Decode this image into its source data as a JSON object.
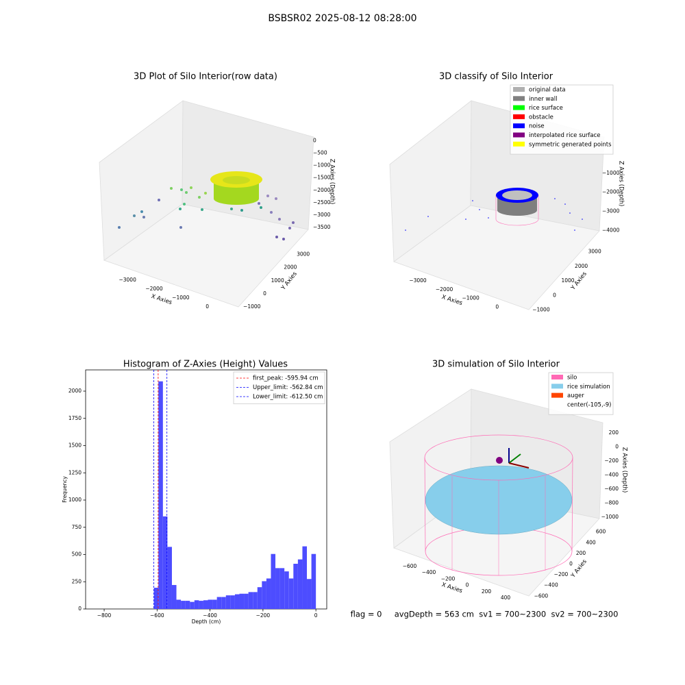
{
  "title": "BSBSR02 2025-08-12 08:28:00",
  "footer": "flag = 0     avgDepth = 563 cm  sv1 = 700~2300  sv2 = 700~2300",
  "chart_data": [
    {
      "type": "scatter3d",
      "title": "3D Plot of Silo Interior(row data)",
      "xlabel": "X Axies",
      "ylabel": "Y Axies",
      "zlabel": "Z Axies (Depth)",
      "xlim": [
        -3700,
        600
      ],
      "xticks": [
        {
          "value": -3000,
          "label": "−3000"
        },
        {
          "value": -2000,
          "label": "−2000"
        },
        {
          "value": -1000,
          "label": "−1000"
        },
        0
      ],
      "ylim": [
        -1200,
        3500
      ],
      "yticks": [
        {
          "value": -1000,
          "label": "−1000"
        },
        0,
        1000,
        2000,
        3000
      ],
      "zlim": [
        -3800,
        200
      ],
      "zticks": [
        0,
        {
          "value": -500,
          "label": "−500"
        },
        {
          "value": -1000,
          "label": "−1000"
        },
        {
          "value": -1500,
          "label": "−1500"
        },
        {
          "value": -2000,
          "label": "−2000"
        },
        {
          "value": -2500,
          "label": "−2500"
        },
        {
          "value": -3000,
          "label": "−3000"
        },
        {
          "value": -3500,
          "label": "−3500"
        }
      ]
    },
    {
      "type": "scatter3d",
      "title": "3D classify of Silo Interior",
      "xlabel": "X Axies",
      "ylabel": "Y Axies",
      "zlabel": "Z Axies (Depth)",
      "xlim": [
        -3700,
        500
      ],
      "xticks": [
        {
          "value": -3000,
          "label": "−3000"
        },
        {
          "value": -2000,
          "label": "−2000"
        },
        {
          "value": -1000,
          "label": "−1000"
        },
        0
      ],
      "ylim": [
        -1200,
        3400
      ],
      "yticks": [
        {
          "value": -1000,
          "label": "−1000"
        },
        0,
        1000,
        2000,
        3000
      ],
      "zlim": [
        -4200,
        0
      ],
      "zticks": [
        {
          "value": -1000,
          "label": "−1000"
        },
        {
          "value": -2000,
          "label": "−2000"
        },
        {
          "value": -3000,
          "label": "−3000"
        },
        {
          "value": -4000,
          "label": "−4000"
        }
      ],
      "legend": [
        {
          "label": "original data",
          "color": "#b0b0b0"
        },
        {
          "label": "inner wall",
          "color": "#808080"
        },
        {
          "label": "rice surface",
          "color": "#00ff00"
        },
        {
          "label": "obstacle",
          "color": "#ff0000"
        },
        {
          "label": "noise",
          "color": "#0000ff"
        },
        {
          "label": "interpolated rice surface",
          "color": "#800080"
        },
        {
          "label": "symmetric generated points",
          "color": "#ffff00"
        }
      ]
    },
    {
      "type": "histogram",
      "title": "Histogram of Z-Axies (Height) Values",
      "xlabel": "Depth (cm)",
      "ylabel": "Frequency",
      "color": "#4d4dff",
      "bins": [
        -612,
        -595,
        -578,
        -561,
        -544,
        -527,
        -510,
        -493,
        -476,
        -459,
        -442,
        -425,
        -408,
        -391,
        -374,
        -357,
        -340,
        -323,
        -306,
        -289,
        -272,
        -255,
        -238,
        -221,
        -204,
        -187,
        -170,
        -153,
        -136,
        -119,
        -102,
        -85,
        -68,
        -51,
        -34,
        -17,
        0
      ],
      "counts": [
        195,
        2090,
        850,
        570,
        220,
        85,
        75,
        75,
        65,
        80,
        75,
        80,
        85,
        85,
        110,
        110,
        125,
        125,
        135,
        140,
        140,
        155,
        155,
        200,
        255,
        280,
        505,
        375,
        375,
        345,
        280,
        415,
        455,
        575,
        275,
        505
      ],
      "xlim": [
        -870,
        41
      ],
      "xticks": [
        {
          "value": -800,
          "label": "−800"
        },
        {
          "value": -600,
          "label": "−600"
        },
        {
          "value": -400,
          "label": "−400"
        },
        {
          "value": -200,
          "label": "−200"
        },
        0
      ],
      "ylim": [
        0,
        2195
      ],
      "yticks": [
        0,
        250,
        500,
        750,
        1000,
        1250,
        1500,
        1750,
        2000
      ],
      "vlines": [
        {
          "label": "first_peak: -595.94 cm",
          "value": -595.94,
          "color": "#ff0000"
        },
        {
          "label": "Upper_limit: -562.84 cm",
          "value": -562.84,
          "color": "#0000ff"
        },
        {
          "label": "Lower_limit: -612.50 cm",
          "value": -612.5,
          "color": "#0000ff"
        }
      ],
      "legend_loc": "upper right"
    },
    {
      "type": "surface3d",
      "title": "3D simulation of Silo Interior",
      "xlabel": "X Axies",
      "ylabel": "Y Axies",
      "zlabel": "Z Axies (Depth)",
      "xlim": [
        -750,
        550
      ],
      "xticks": [
        {
          "value": -600,
          "label": "−600"
        },
        {
          "value": -400,
          "label": "−400"
        },
        {
          "value": -200,
          "label": "−200"
        },
        0,
        200,
        400
      ],
      "ylim": [
        -750,
        750
      ],
      "yticks": [
        {
          "value": -600,
          "label": "−600"
        },
        {
          "value": -400,
          "label": "−400"
        },
        {
          "value": -200,
          "label": "−200"
        },
        0,
        200,
        400,
        600
      ],
      "zlim": [
        -1100,
        300
      ],
      "zticks": [
        200,
        0,
        {
          "value": -200,
          "label": "−200"
        },
        {
          "value": -400,
          "label": "−400"
        },
        {
          "value": -600,
          "label": "−600"
        },
        {
          "value": -800,
          "label": "−800"
        },
        {
          "value": -1000,
          "label": "−1000"
        }
      ],
      "legend": [
        {
          "label": "silo",
          "color": "#ff69b4"
        },
        {
          "label": "rice simulation",
          "color": "#87ceeb"
        },
        {
          "label": "auger",
          "color": "#ff4500"
        },
        {
          "label": "center(-105,-9)"
        }
      ]
    }
  ]
}
